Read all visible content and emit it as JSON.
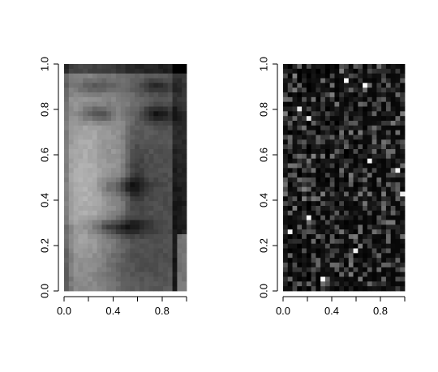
{
  "chart_data": [
    {
      "type": "heatmap",
      "name": "face-image",
      "colormap": "grayscale",
      "xlim": [
        0,
        1
      ],
      "ylim": [
        0,
        1
      ],
      "x_ticks": [
        "0.0",
        "0.4",
        "0.8"
      ],
      "x_tick_values": [
        0,
        0.4,
        0.8
      ],
      "x_minor_tick_values": [
        0.2,
        0.6,
        1.0
      ],
      "y_ticks": [
        "0.0",
        "0.2",
        "0.4",
        "0.6",
        "0.8",
        "1.0"
      ],
      "y_tick_values": [
        0,
        0.2,
        0.4,
        0.6,
        0.8,
        1.0
      ],
      "grid": false
    },
    {
      "type": "heatmap",
      "name": "noise-image",
      "colormap": "grayscale",
      "xlim": [
        0,
        1
      ],
      "ylim": [
        0,
        1
      ],
      "x_ticks": [
        "0.0",
        "0.4",
        "0.8"
      ],
      "x_tick_values": [
        0,
        0.4,
        0.8
      ],
      "x_minor_tick_values": [
        0.2,
        0.6,
        1.0
      ],
      "y_ticks": [
        "0.0",
        "0.2",
        "0.4",
        "0.6",
        "0.8",
        "1.0"
      ],
      "y_tick_values": [
        0,
        0.2,
        0.4,
        0.6,
        0.8,
        1.0
      ],
      "grid": false
    }
  ]
}
